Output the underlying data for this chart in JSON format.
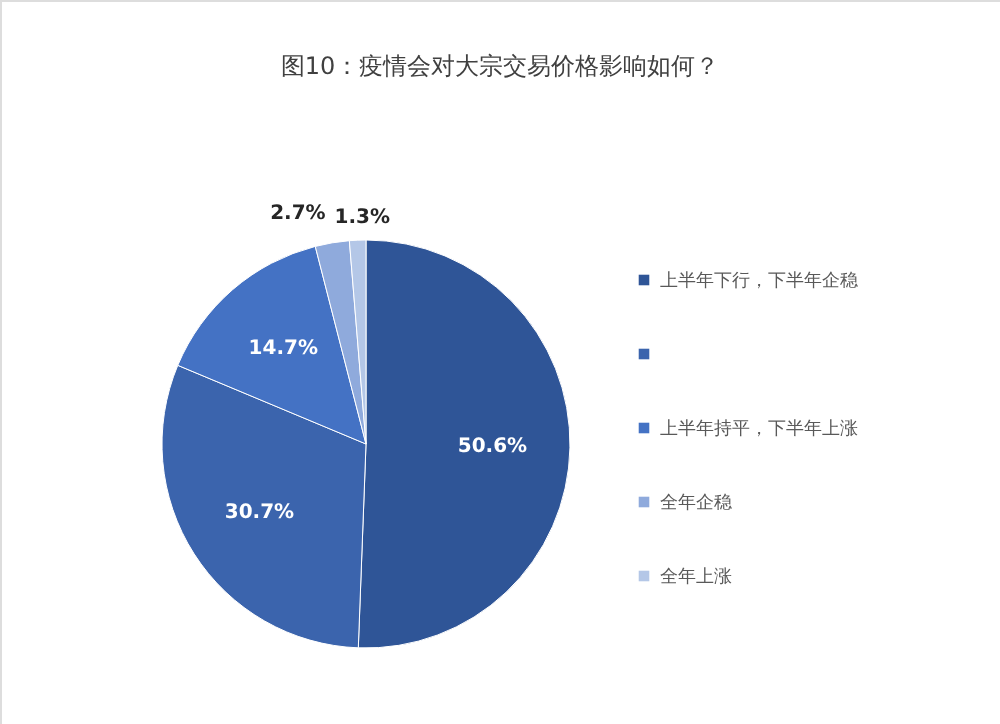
{
  "chart_data": {
    "type": "pie",
    "title": "图10：疫情会对大宗交易价格影响如何？",
    "categories": [
      "上半年下行，下半年企稳",
      null,
      "上半年持平，下半年上涨",
      "全年企稳",
      "全年上涨"
    ],
    "values": [
      50.6,
      30.7,
      14.7,
      2.7,
      1.3
    ],
    "value_labels": [
      "50.6%",
      "30.7%",
      "14.7%",
      "2.7%",
      "1.3%"
    ],
    "colors": [
      "#2f5597",
      "#3b64ad",
      "#4472c4",
      "#8faadc",
      "#b4c7e7"
    ],
    "legend": "right"
  }
}
